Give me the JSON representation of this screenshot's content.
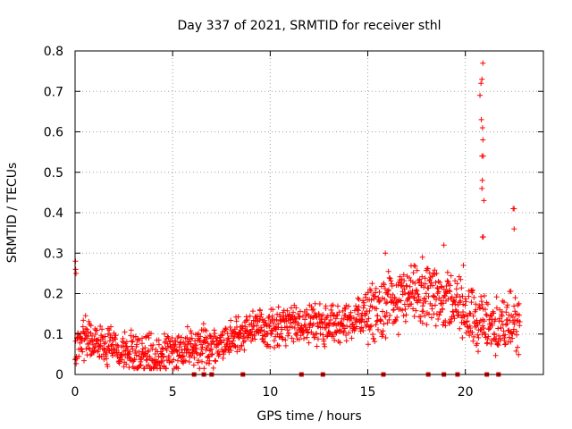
{
  "chart_data": {
    "type": "scatter",
    "title": "Day 337 of 2021, SRMTID for receiver sthl",
    "xlabel": "GPS time / hours",
    "ylabel": "SRMTID / TECUs",
    "xlim": [
      0,
      24
    ],
    "ylim": [
      0,
      0.8
    ],
    "xticks": [
      0,
      5,
      10,
      15,
      20
    ],
    "yticks": [
      0,
      0.1,
      0.2,
      0.3,
      0.4,
      0.5,
      0.6,
      0.7,
      0.8
    ],
    "grid": true,
    "marker": "plus",
    "series_color": "#ff0000",
    "gap_marker_color": "#dd0000",
    "series": [
      {
        "name": "SRMTID",
        "profile": [
          [
            0.0,
            0.06
          ],
          [
            0.5,
            0.09
          ],
          [
            1.0,
            0.08
          ],
          [
            2.0,
            0.07
          ],
          [
            3.0,
            0.055
          ],
          [
            4.0,
            0.05
          ],
          [
            5.0,
            0.06
          ],
          [
            6.0,
            0.065
          ],
          [
            7.0,
            0.07
          ],
          [
            8.0,
            0.085
          ],
          [
            9.0,
            0.11
          ],
          [
            10.0,
            0.12
          ],
          [
            11.0,
            0.12
          ],
          [
            12.0,
            0.13
          ],
          [
            13.0,
            0.12
          ],
          [
            14.0,
            0.13
          ],
          [
            15.0,
            0.15
          ],
          [
            16.0,
            0.17
          ],
          [
            17.0,
            0.19
          ],
          [
            18.0,
            0.19
          ],
          [
            19.0,
            0.19
          ],
          [
            20.0,
            0.16
          ],
          [
            21.0,
            0.12
          ],
          [
            22.0,
            0.12
          ],
          [
            22.8,
            0.13
          ]
        ],
        "spread": 0.05,
        "count": 1400,
        "outliers": [
          [
            0.02,
            0.28
          ],
          [
            0.03,
            0.26
          ],
          [
            0.05,
            0.25
          ],
          [
            20.75,
            0.69
          ],
          [
            20.8,
            0.72
          ],
          [
            20.85,
            0.73
          ],
          [
            20.9,
            0.77
          ],
          [
            20.82,
            0.63
          ],
          [
            20.88,
            0.61
          ],
          [
            20.9,
            0.58
          ],
          [
            20.85,
            0.54
          ],
          [
            20.92,
            0.54
          ],
          [
            20.87,
            0.48
          ],
          [
            20.85,
            0.46
          ],
          [
            20.95,
            0.43
          ],
          [
            20.88,
            0.34
          ],
          [
            20.92,
            0.34
          ],
          [
            22.45,
            0.41
          ],
          [
            22.5,
            0.41
          ],
          [
            22.5,
            0.36
          ],
          [
            18.9,
            0.32
          ],
          [
            15.9,
            0.3
          ],
          [
            17.8,
            0.29
          ],
          [
            19.9,
            0.27
          ]
        ]
      }
    ],
    "data_gap_markers_x": [
      6.1,
      6.6,
      7.0,
      8.6,
      11.6,
      12.7,
      15.8,
      18.1,
      18.9,
      19.6,
      21.1,
      21.7
    ],
    "data_gap_markers_y": 0
  }
}
